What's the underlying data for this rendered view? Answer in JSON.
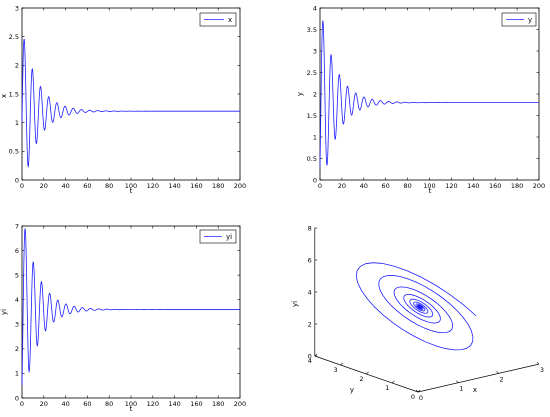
{
  "chart_data": [
    {
      "type": "line",
      "panel": "top-left",
      "title": "",
      "xlabel": "t",
      "ylabel": "x",
      "xlim": [
        0,
        200
      ],
      "ylim": [
        0,
        3
      ],
      "xticks": [
        0,
        20,
        40,
        60,
        80,
        100,
        120,
        140,
        160,
        180,
        200
      ],
      "yticks": [
        0,
        0.5,
        1,
        1.5,
        2,
        2.5,
        3
      ],
      "xtick_labels": [
        "0",
        "20",
        "40",
        "60",
        "80",
        "100",
        "120",
        "140",
        "160",
        "180",
        "200"
      ],
      "ytick_labels": [
        "0",
        "0.5",
        "1",
        "1.5",
        "2",
        "2.5",
        "3"
      ],
      "legend": "top-right",
      "color": "#1f1fff",
      "series": [
        {
          "name": "x",
          "equilibrium": 1.2,
          "initial": 1.0,
          "period": 7.5,
          "decay_time": 14,
          "peaks": [
            [
              2,
              2.8
            ],
            [
              9.5,
              2.1
            ],
            [
              17,
              1.82
            ],
            [
              24.5,
              1.65
            ],
            [
              32,
              1.53
            ],
            [
              39.5,
              1.45
            ]
          ],
          "troughs": [
            [
              5.8,
              0.2
            ],
            [
              13.3,
              0.5
            ],
            [
              20.8,
              0.72
            ],
            [
              28.3,
              0.86
            ],
            [
              35.8,
              0.95
            ]
          ]
        }
      ]
    },
    {
      "type": "line",
      "panel": "top-right",
      "title": "",
      "xlabel": "t",
      "ylabel": "y",
      "xlim": [
        0,
        200
      ],
      "ylim": [
        0,
        4
      ],
      "xticks": [
        0,
        20,
        40,
        60,
        80,
        100,
        120,
        140,
        160,
        180,
        200
      ],
      "yticks": [
        0,
        0.5,
        1,
        1.5,
        2,
        2.5,
        3,
        3.5,
        4
      ],
      "xtick_labels": [
        "0",
        "20",
        "40",
        "60",
        "80",
        "100",
        "120",
        "140",
        "160",
        "180",
        "200"
      ],
      "ytick_labels": [
        "0",
        "0.5",
        "1",
        "1.5",
        "2",
        "2.5",
        "3",
        "3.5",
        "4"
      ],
      "legend": "top-right",
      "color": "#1f1fff",
      "series": [
        {
          "name": "y",
          "equilibrium": 1.8,
          "initial": 0.3,
          "period": 7.5,
          "decay_time": 14,
          "peaks": [
            [
              3.5,
              3.75
            ],
            [
              11,
              2.85
            ],
            [
              18.5,
              2.48
            ],
            [
              26,
              2.25
            ],
            [
              33.5,
              2.1
            ]
          ],
          "troughs": [
            [
              7.3,
              0.8
            ],
            [
              14.8,
              1.1
            ],
            [
              22.3,
              1.32
            ],
            [
              29.8,
              1.45
            ]
          ]
        }
      ]
    },
    {
      "type": "line",
      "panel": "bottom-left",
      "title": "",
      "xlabel": "t",
      "ylabel": "yi",
      "xlim": [
        0,
        200
      ],
      "ylim": [
        0,
        7
      ],
      "xticks": [
        0,
        20,
        40,
        60,
        80,
        100,
        120,
        140,
        160,
        180,
        200
      ],
      "yticks": [
        0,
        1,
        2,
        3,
        4,
        5,
        6,
        7
      ],
      "xtick_labels": [
        "0",
        "20",
        "40",
        "60",
        "80",
        "100",
        "120",
        "140",
        "160",
        "180",
        "200"
      ],
      "ytick_labels": [
        "0",
        "1",
        "2",
        "3",
        "4",
        "5",
        "6",
        "7"
      ],
      "legend": "top-right",
      "color": "#1f1fff",
      "series": [
        {
          "name": "yi",
          "equilibrium": 3.6,
          "initial": 0.5,
          "period": 7.5,
          "decay_time": 14,
          "peaks": [
            [
              3.5,
              6.5
            ],
            [
              11,
              5.15
            ],
            [
              18.5,
              4.6
            ],
            [
              26,
              4.2
            ]
          ],
          "troughs": [
            [
              7.3,
              1.9
            ],
            [
              14.8,
              2.4
            ],
            [
              22.3,
              2.8
            ],
            [
              29.8,
              3.05
            ]
          ]
        }
      ]
    },
    {
      "type": "line",
      "panel": "bottom-right",
      "title": "",
      "xlabel": "x",
      "ylabel": "y",
      "zlabel": "yi",
      "xlim": [
        0,
        3
      ],
      "ylim": [
        0,
        4
      ],
      "zlim": [
        0,
        8
      ],
      "xtick_labels": [
        "0",
        "1",
        "2",
        "3"
      ],
      "ytick_labels": [
        "0",
        "1",
        "2",
        "3",
        "4"
      ],
      "ztick_labels": [
        "0",
        "2",
        "4",
        "6",
        "8"
      ],
      "color": "#1f1fff",
      "series": [
        {
          "name": "",
          "equilibrium": [
            1.2,
            1.8,
            3.6
          ],
          "initial": [
            1.0,
            0.3,
            0.5
          ]
        }
      ]
    }
  ]
}
